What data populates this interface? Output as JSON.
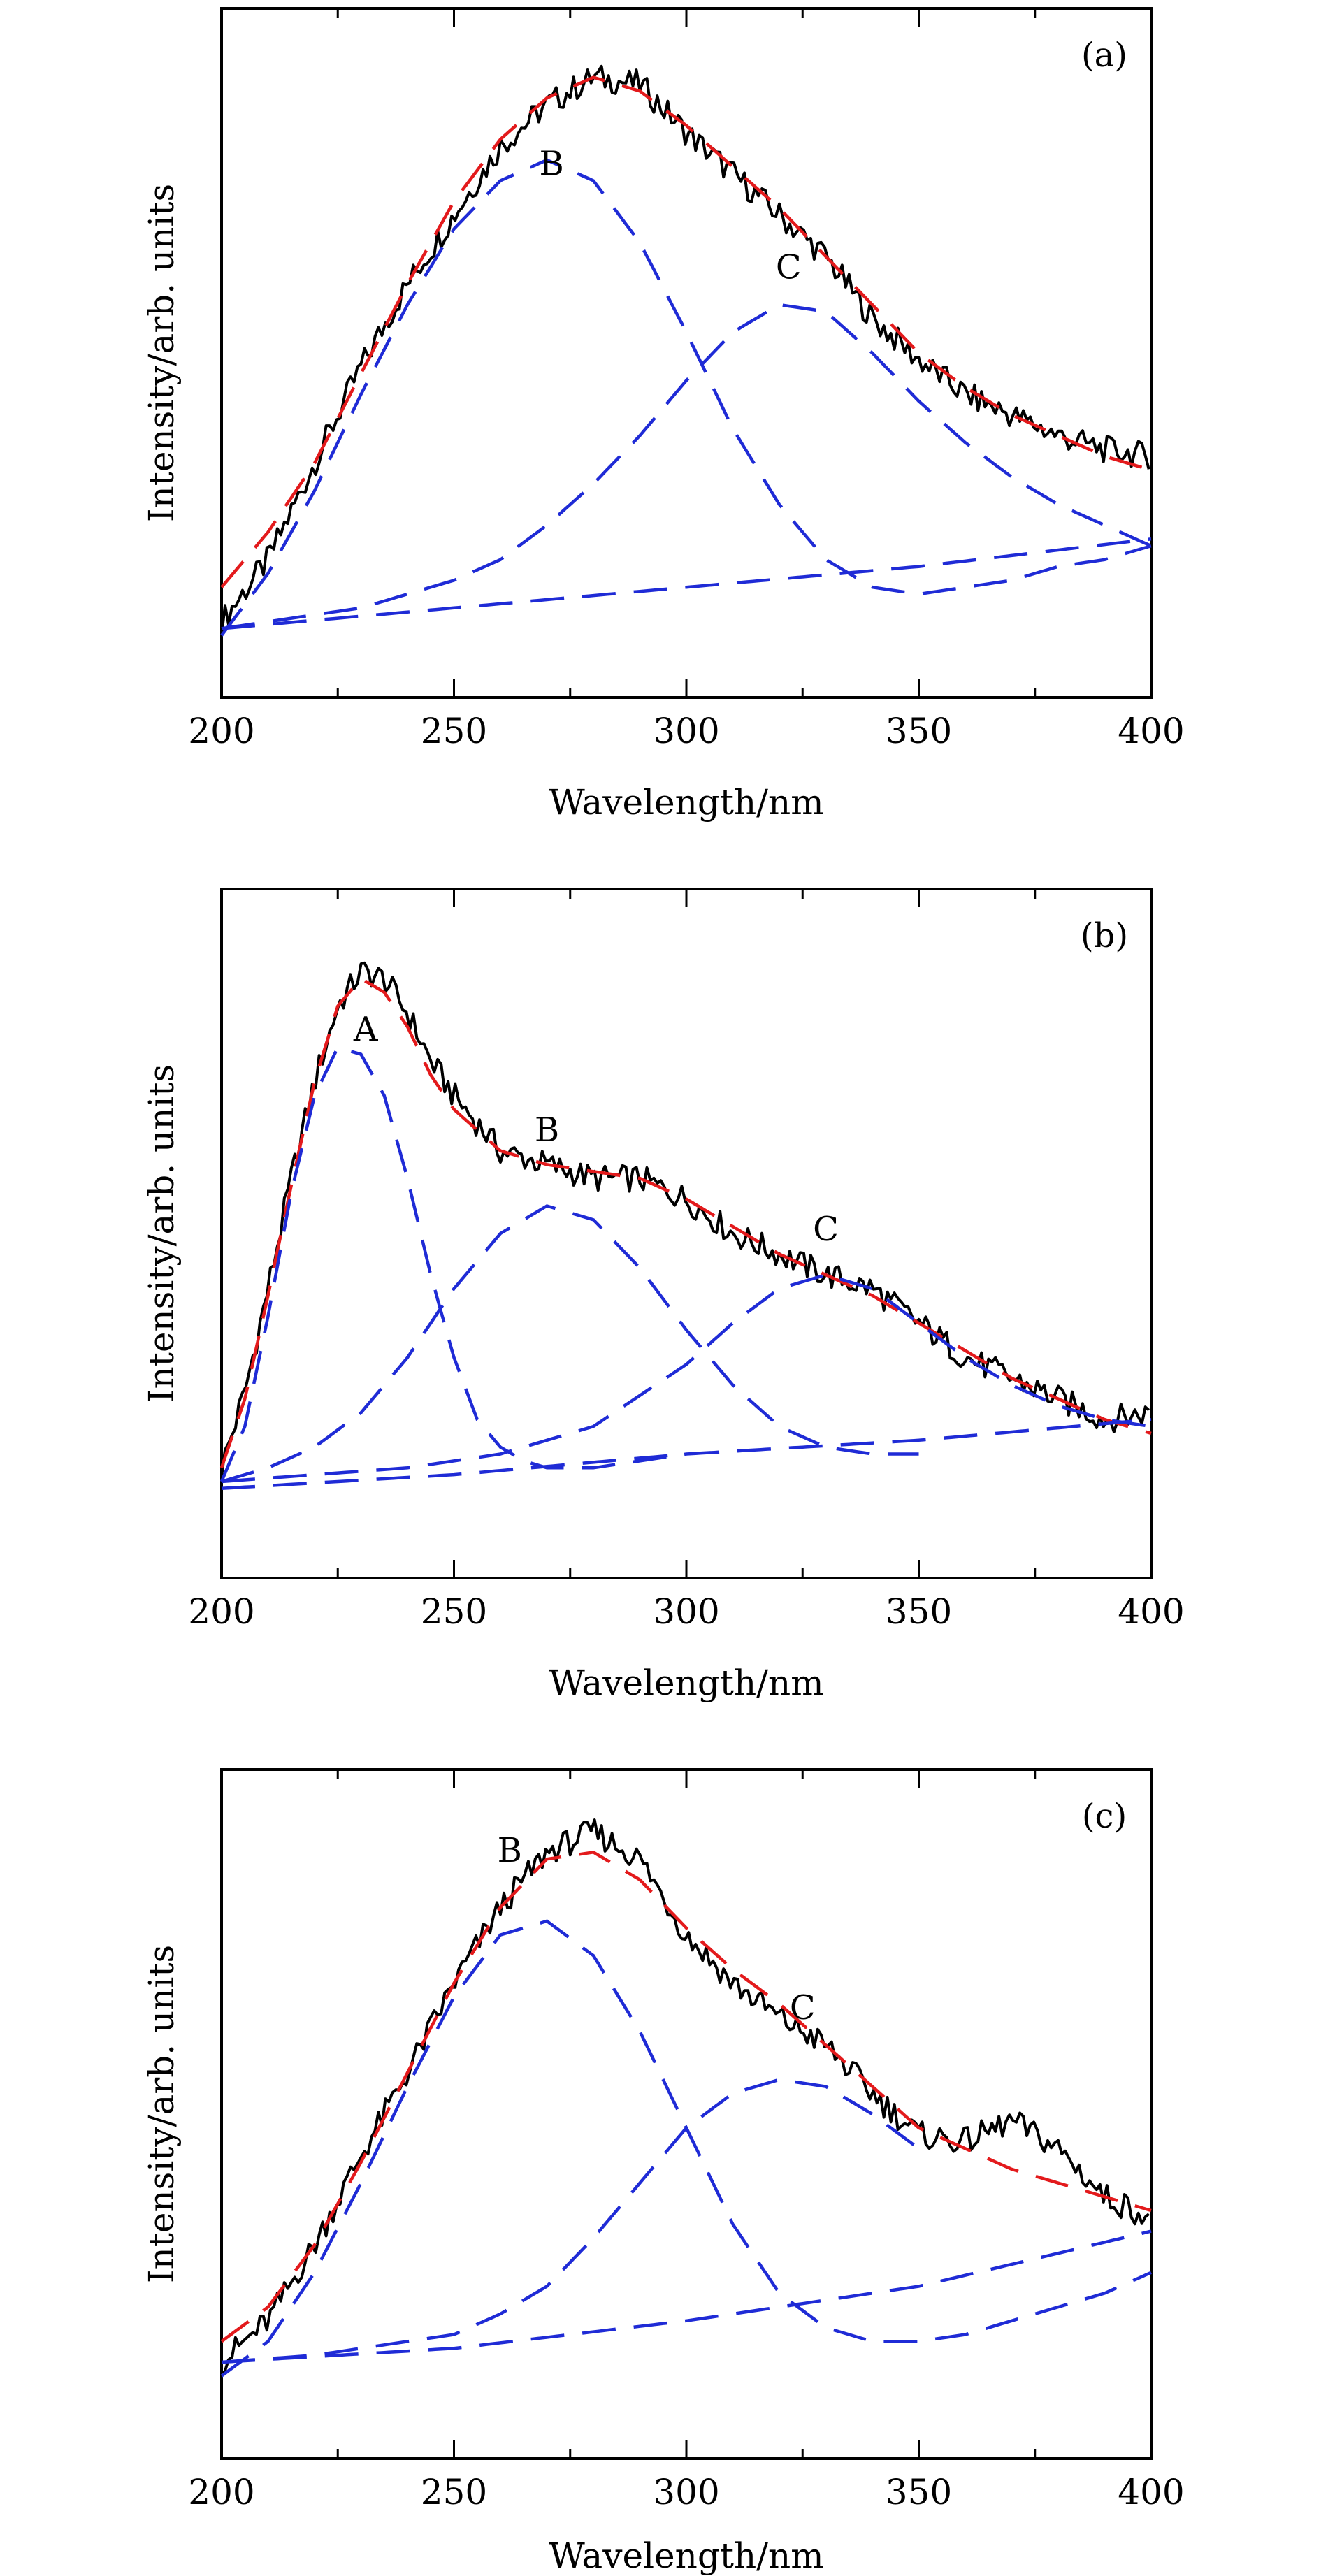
{
  "chart_data": [
    {
      "panel": "(a)",
      "type": "line",
      "xlabel": "Wavelength/nm",
      "ylabel": "Intensity/arb. units",
      "xlim": [
        200,
        400
      ],
      "ylim": [
        0,
        1
      ],
      "x_ticks": [
        "200",
        "250",
        "300",
        "350",
        "400"
      ],
      "colors": {
        "measured": "#000000",
        "fit": "#e31a1c",
        "components": "#1f2bd6"
      },
      "annotations": [
        {
          "text": "B",
          "x": 271,
          "y": 0.758
        },
        {
          "text": "C",
          "x": 322,
          "y": 0.608
        }
      ],
      "series": [
        {
          "role": "measured",
          "x": [
            200,
            210,
            220,
            230,
            240,
            250,
            260,
            270,
            280,
            290,
            300,
            310,
            320,
            330,
            340,
            350,
            360,
            370,
            380,
            390,
            400
          ],
          "values": [
            0.11,
            0.2,
            0.34,
            0.48,
            0.6,
            0.7,
            0.8,
            0.86,
            0.9,
            0.89,
            0.82,
            0.76,
            0.7,
            0.64,
            0.55,
            0.49,
            0.44,
            0.41,
            0.38,
            0.36,
            0.35
          ]
        },
        {
          "role": "fit",
          "x": [
            200,
            210,
            220,
            230,
            240,
            250,
            260,
            270,
            280,
            290,
            300,
            310,
            320,
            330,
            340,
            350,
            360,
            370,
            380,
            390,
            400
          ],
          "values": [
            0.16,
            0.24,
            0.34,
            0.47,
            0.6,
            0.72,
            0.81,
            0.87,
            0.9,
            0.88,
            0.83,
            0.77,
            0.71,
            0.64,
            0.57,
            0.5,
            0.45,
            0.41,
            0.38,
            0.35,
            0.33
          ]
        },
        {
          "role": "component",
          "x": [
            200,
            210,
            220,
            230,
            240,
            250,
            260,
            270,
            280,
            290,
            300,
            310,
            320,
            330,
            340,
            350,
            360,
            370,
            380,
            390,
            400
          ],
          "values": [
            0.09,
            0.18,
            0.3,
            0.44,
            0.57,
            0.68,
            0.75,
            0.78,
            0.75,
            0.66,
            0.53,
            0.39,
            0.28,
            0.2,
            0.16,
            0.15,
            0.16,
            0.17,
            0.19,
            0.2,
            0.22
          ]
        },
        {
          "role": "component",
          "x": [
            200,
            210,
            220,
            230,
            240,
            250,
            260,
            270,
            280,
            290,
            300,
            310,
            320,
            330,
            340,
            350,
            360,
            370,
            380,
            390,
            400
          ],
          "values": [
            0.1,
            0.11,
            0.12,
            0.13,
            0.15,
            0.17,
            0.2,
            0.25,
            0.31,
            0.38,
            0.46,
            0.53,
            0.57,
            0.56,
            0.5,
            0.43,
            0.37,
            0.32,
            0.28,
            0.25,
            0.22
          ]
        },
        {
          "role": "component",
          "x": [
            200,
            250,
            300,
            350,
            400
          ],
          "values": [
            0.1,
            0.13,
            0.16,
            0.19,
            0.23
          ]
        }
      ]
    },
    {
      "panel": "(b)",
      "type": "line",
      "xlabel": "Wavelength/nm",
      "ylabel": "Intensity/arb. units",
      "xlim": [
        200,
        400
      ],
      "ylim": [
        0,
        1
      ],
      "x_ticks": [
        "200",
        "250",
        "300",
        "350",
        "400"
      ],
      "colors": {
        "measured": "#000000",
        "fit": "#e31a1c",
        "components": "#1f2bd6"
      },
      "annotations": [
        {
          "text": "A",
          "x": 231,
          "y": 0.78
        },
        {
          "text": "B",
          "x": 270,
          "y": 0.634
        },
        {
          "text": "C",
          "x": 330,
          "y": 0.49
        }
      ],
      "series": [
        {
          "role": "measured",
          "x": [
            200,
            205,
            210,
            215,
            220,
            225,
            230,
            235,
            240,
            245,
            250,
            260,
            270,
            280,
            290,
            300,
            310,
            320,
            330,
            340,
            350,
            360,
            370,
            380,
            390,
            400
          ],
          "values": [
            0.16,
            0.27,
            0.42,
            0.58,
            0.72,
            0.83,
            0.88,
            0.87,
            0.82,
            0.75,
            0.7,
            0.62,
            0.6,
            0.58,
            0.58,
            0.55,
            0.5,
            0.47,
            0.44,
            0.42,
            0.37,
            0.32,
            0.29,
            0.26,
            0.23,
            0.24
          ]
        },
        {
          "role": "fit",
          "x": [
            200,
            205,
            210,
            215,
            220,
            225,
            230,
            235,
            240,
            245,
            250,
            260,
            270,
            280,
            290,
            300,
            310,
            320,
            330,
            340,
            350,
            360,
            370,
            380,
            390,
            400
          ],
          "values": [
            0.16,
            0.26,
            0.41,
            0.57,
            0.72,
            0.83,
            0.87,
            0.85,
            0.8,
            0.73,
            0.68,
            0.62,
            0.6,
            0.59,
            0.58,
            0.55,
            0.51,
            0.47,
            0.44,
            0.41,
            0.37,
            0.33,
            0.29,
            0.26,
            0.23,
            0.21
          ]
        },
        {
          "role": "component",
          "x": [
            200,
            205,
            210,
            215,
            220,
            225,
            230,
            235,
            240,
            245,
            250,
            255,
            260,
            265,
            270,
            280,
            290,
            300
          ],
          "values": [
            0.14,
            0.22,
            0.38,
            0.56,
            0.7,
            0.77,
            0.76,
            0.7,
            0.58,
            0.44,
            0.32,
            0.23,
            0.19,
            0.17,
            0.16,
            0.16,
            0.17,
            0.18
          ]
        },
        {
          "role": "component",
          "x": [
            200,
            210,
            220,
            230,
            240,
            250,
            260,
            270,
            280,
            290,
            300,
            310,
            320,
            330,
            340,
            350
          ],
          "values": [
            0.14,
            0.16,
            0.19,
            0.24,
            0.32,
            0.42,
            0.5,
            0.54,
            0.52,
            0.45,
            0.36,
            0.28,
            0.22,
            0.19,
            0.18,
            0.18
          ]
        },
        {
          "role": "component",
          "x": [
            200,
            220,
            240,
            260,
            280,
            300,
            310,
            320,
            330,
            340,
            350,
            360,
            370,
            380,
            390,
            400
          ],
          "values": [
            0.14,
            0.15,
            0.16,
            0.18,
            0.22,
            0.31,
            0.37,
            0.42,
            0.44,
            0.42,
            0.37,
            0.32,
            0.28,
            0.25,
            0.23,
            0.22
          ]
        },
        {
          "role": "component",
          "x": [
            200,
            250,
            300,
            350,
            400
          ],
          "values": [
            0.13,
            0.15,
            0.18,
            0.2,
            0.23
          ]
        }
      ]
    },
    {
      "panel": "(c)",
      "type": "line",
      "xlabel": "Wavelength/nm",
      "ylabel": "Intensity/arb. units",
      "xlim": [
        200,
        400
      ],
      "ylim": [
        0,
        1
      ],
      "x_ticks": [
        "200",
        "250",
        "300",
        "350",
        "400"
      ],
      "colors": {
        "measured": "#000000",
        "fit": "#e31a1c",
        "components": "#1f2bd6"
      },
      "annotations": [
        {
          "text": "B",
          "x": 262,
          "y": 0.866
        },
        {
          "text": "C",
          "x": 325,
          "y": 0.638
        }
      ],
      "series": [
        {
          "role": "measured",
          "x": [
            200,
            210,
            220,
            230,
            240,
            250,
            260,
            270,
            280,
            290,
            300,
            310,
            320,
            330,
            340,
            350,
            360,
            370,
            380,
            390,
            400
          ],
          "values": [
            0.14,
            0.2,
            0.31,
            0.44,
            0.56,
            0.69,
            0.8,
            0.88,
            0.91,
            0.87,
            0.76,
            0.69,
            0.64,
            0.6,
            0.53,
            0.47,
            0.46,
            0.49,
            0.45,
            0.38,
            0.35
          ]
        },
        {
          "role": "fit",
          "x": [
            200,
            210,
            220,
            230,
            240,
            250,
            260,
            270,
            280,
            290,
            300,
            310,
            320,
            330,
            340,
            350,
            360,
            370,
            380,
            390,
            400
          ],
          "values": [
            0.17,
            0.22,
            0.31,
            0.43,
            0.56,
            0.69,
            0.8,
            0.87,
            0.88,
            0.84,
            0.77,
            0.71,
            0.66,
            0.6,
            0.54,
            0.48,
            0.45,
            0.42,
            0.4,
            0.38,
            0.36
          ]
        },
        {
          "role": "component",
          "x": [
            200,
            210,
            220,
            230,
            240,
            250,
            260,
            270,
            280,
            290,
            300,
            310,
            320,
            330,
            340,
            350,
            360,
            370,
            380,
            390,
            400
          ],
          "values": [
            0.12,
            0.17,
            0.27,
            0.4,
            0.54,
            0.67,
            0.76,
            0.78,
            0.73,
            0.62,
            0.48,
            0.34,
            0.24,
            0.19,
            0.17,
            0.17,
            0.18,
            0.2,
            0.22,
            0.24,
            0.27
          ]
        },
        {
          "role": "component",
          "x": [
            200,
            220,
            240,
            250,
            260,
            270,
            280,
            290,
            300,
            310,
            320,
            330,
            340,
            350
          ],
          "values": [
            0.14,
            0.15,
            0.17,
            0.18,
            0.21,
            0.25,
            0.32,
            0.4,
            0.48,
            0.53,
            0.55,
            0.54,
            0.5,
            0.45
          ]
        },
        {
          "role": "component",
          "x": [
            200,
            250,
            300,
            350,
            400
          ],
          "values": [
            0.14,
            0.16,
            0.2,
            0.25,
            0.33
          ]
        }
      ]
    }
  ]
}
